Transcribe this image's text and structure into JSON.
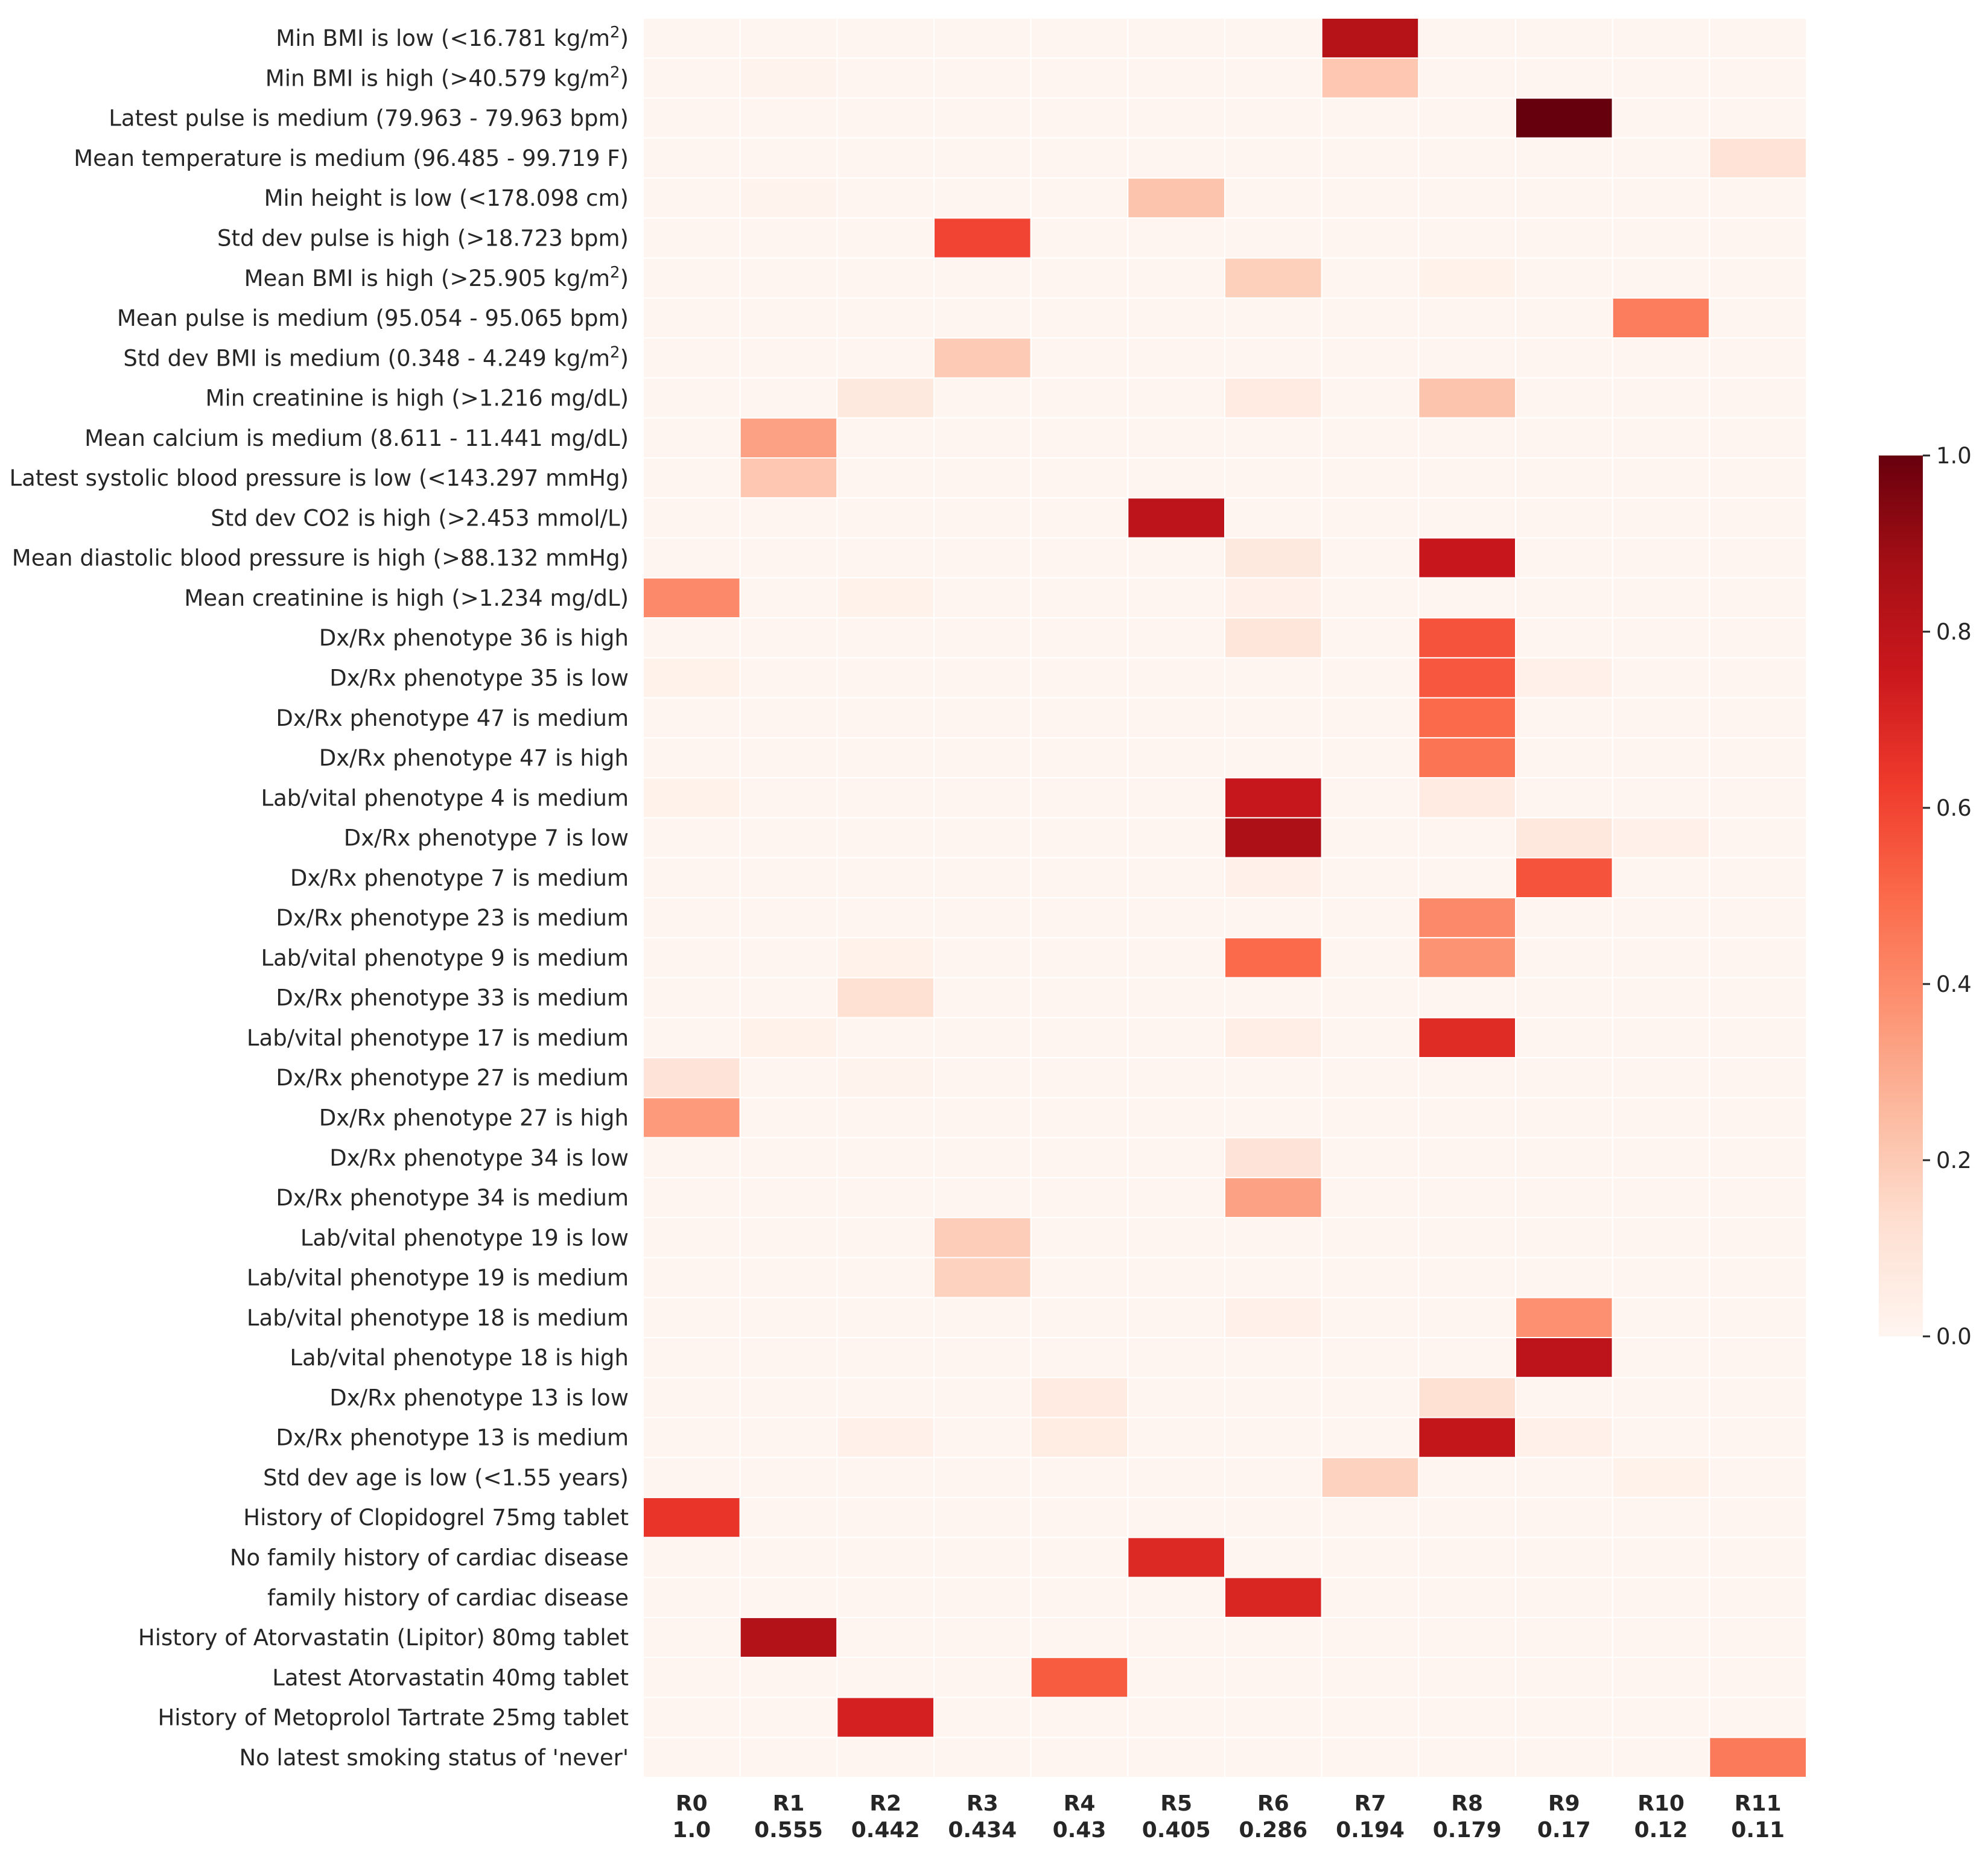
{
  "chart_data": {
    "type": "heatmap",
    "title": "",
    "xlabel": "",
    "ylabel": "",
    "columns": [
      {
        "name": "R0",
        "score": "1.0"
      },
      {
        "name": "R1",
        "score": "0.555"
      },
      {
        "name": "R2",
        "score": "0.442"
      },
      {
        "name": "R3",
        "score": "0.434"
      },
      {
        "name": "R4",
        "score": "0.43"
      },
      {
        "name": "R5",
        "score": "0.405"
      },
      {
        "name": "R6",
        "score": "0.286"
      },
      {
        "name": "R7",
        "score": "0.194"
      },
      {
        "name": "R8",
        "score": "0.179"
      },
      {
        "name": "R9",
        "score": "0.17"
      },
      {
        "name": "R10",
        "score": "0.12"
      },
      {
        "name": "R11",
        "score": "0.11"
      }
    ],
    "rows": [
      {
        "pre": "Min BMI is low (<16.781 kg/m",
        "sup": "2",
        "post": ")"
      },
      {
        "pre": "Min BMI is high (>40.579 kg/m",
        "sup": "2",
        "post": ")"
      },
      {
        "pre": "Latest pulse is medium (79.963 - 79.963 bpm)",
        "sup": "",
        "post": ""
      },
      {
        "pre": "Mean temperature is medium (96.485 - 99.719 F)",
        "sup": "",
        "post": ""
      },
      {
        "pre": "Min height is low (<178.098 cm)",
        "sup": "",
        "post": ""
      },
      {
        "pre": "Std dev pulse is high (>18.723 bpm)",
        "sup": "",
        "post": ""
      },
      {
        "pre": "Mean BMI is high (>25.905 kg/m",
        "sup": "2",
        "post": ")"
      },
      {
        "pre": "Mean pulse is medium (95.054 - 95.065 bpm)",
        "sup": "",
        "post": ""
      },
      {
        "pre": "Std dev BMI is medium (0.348 - 4.249 kg/m",
        "sup": "2",
        "post": ")"
      },
      {
        "pre": "Min creatinine is high (>1.216 mg/dL)",
        "sup": "",
        "post": ""
      },
      {
        "pre": "Mean calcium is medium (8.611 - 11.441 mg/dL)",
        "sup": "",
        "post": ""
      },
      {
        "pre": "Latest systolic blood pressure is low (<143.297 mmHg)",
        "sup": "",
        "post": ""
      },
      {
        "pre": "Std dev CO2 is high (>2.453 mmol/L)",
        "sup": "",
        "post": ""
      },
      {
        "pre": "Mean diastolic blood pressure is high (>88.132 mmHg)",
        "sup": "",
        "post": ""
      },
      {
        "pre": "Mean creatinine is high (>1.234 mg/dL)",
        "sup": "",
        "post": ""
      },
      {
        "pre": "Dx/Rx phenotype 36 is high",
        "sup": "",
        "post": ""
      },
      {
        "pre": "Dx/Rx phenotype 35 is low",
        "sup": "",
        "post": ""
      },
      {
        "pre": "Dx/Rx phenotype 47 is medium",
        "sup": "",
        "post": ""
      },
      {
        "pre": "Dx/Rx phenotype 47 is high",
        "sup": "",
        "post": ""
      },
      {
        "pre": "Lab/vital phenotype 4 is medium",
        "sup": "",
        "post": ""
      },
      {
        "pre": "Dx/Rx phenotype 7 is low",
        "sup": "",
        "post": ""
      },
      {
        "pre": "Dx/Rx phenotype 7 is medium",
        "sup": "",
        "post": ""
      },
      {
        "pre": "Dx/Rx phenotype 23 is medium",
        "sup": "",
        "post": ""
      },
      {
        "pre": "Lab/vital phenotype 9 is medium",
        "sup": "",
        "post": ""
      },
      {
        "pre": "Dx/Rx phenotype 33 is medium",
        "sup": "",
        "post": ""
      },
      {
        "pre": "Lab/vital phenotype 17 is medium",
        "sup": "",
        "post": ""
      },
      {
        "pre": "Dx/Rx phenotype 27 is medium",
        "sup": "",
        "post": ""
      },
      {
        "pre": "Dx/Rx phenotype 27 is high",
        "sup": "",
        "post": ""
      },
      {
        "pre": "Dx/Rx phenotype 34 is low",
        "sup": "",
        "post": ""
      },
      {
        "pre": "Dx/Rx phenotype 34 is medium",
        "sup": "",
        "post": ""
      },
      {
        "pre": "Lab/vital phenotype 19 is low",
        "sup": "",
        "post": ""
      },
      {
        "pre": "Lab/vital phenotype 19 is medium",
        "sup": "",
        "post": ""
      },
      {
        "pre": "Lab/vital phenotype 18 is medium",
        "sup": "",
        "post": ""
      },
      {
        "pre": "Lab/vital phenotype 18 is high",
        "sup": "",
        "post": ""
      },
      {
        "pre": "Dx/Rx phenotype 13 is low",
        "sup": "",
        "post": ""
      },
      {
        "pre": "Dx/Rx phenotype 13 is medium",
        "sup": "",
        "post": ""
      },
      {
        "pre": "Std dev age is low (<1.55 years)",
        "sup": "",
        "post": ""
      },
      {
        "pre": "History of Clopidogrel 75mg tablet",
        "sup": "",
        "post": ""
      },
      {
        "pre": "No family history of cardiac disease",
        "sup": "",
        "post": ""
      },
      {
        "pre": "family history of cardiac disease",
        "sup": "",
        "post": ""
      },
      {
        "pre": "History of Atorvastatin (Lipitor) 80mg tablet",
        "sup": "",
        "post": ""
      },
      {
        "pre": "Latest Atorvastatin 40mg tablet",
        "sup": "",
        "post": ""
      },
      {
        "pre": "History of Metoprolol Tartrate 25mg tablet",
        "sup": "",
        "post": ""
      },
      {
        "pre": "No latest smoking status of 'never'",
        "sup": "",
        "post": ""
      }
    ],
    "values": [
      [
        0.0,
        0.0,
        0.0,
        0.0,
        0.0,
        0.0,
        0.0,
        0.82,
        0.0,
        0.0,
        0.0,
        0.0
      ],
      [
        0.0,
        0.01,
        0.0,
        0.0,
        0.0,
        0.0,
        0.0,
        0.21,
        0.0,
        0.0,
        0.0,
        0.0
      ],
      [
        0.0,
        0.0,
        0.0,
        0.0,
        0.0,
        0.0,
        0.0,
        0.0,
        0.0,
        1.0,
        0.0,
        0.0
      ],
      [
        0.0,
        0.0,
        0.0,
        0.0,
        0.0,
        0.0,
        0.0,
        0.0,
        0.0,
        0.0,
        0.0,
        0.11
      ],
      [
        0.0,
        0.01,
        0.0,
        0.0,
        0.0,
        0.22,
        0.0,
        0.0,
        0.0,
        0.0,
        0.0,
        0.0
      ],
      [
        0.0,
        0.0,
        0.0,
        0.6,
        0.0,
        0.0,
        0.0,
        0.0,
        0.0,
        0.0,
        0.0,
        0.0
      ],
      [
        0.0,
        0.0,
        0.0,
        0.0,
        0.0,
        0.0,
        0.18,
        0.0,
        0.02,
        0.0,
        0.0,
        0.0
      ],
      [
        0.0,
        0.0,
        0.0,
        0.0,
        0.0,
        0.0,
        0.0,
        0.0,
        0.0,
        0.0,
        0.44,
        0.0
      ],
      [
        0.0,
        0.0,
        0.0,
        0.2,
        0.0,
        0.0,
        0.0,
        0.0,
        0.0,
        0.0,
        0.0,
        0.0
      ],
      [
        0.0,
        0.0,
        0.07,
        0.0,
        0.0,
        0.0,
        0.06,
        0.0,
        0.22,
        0.0,
        0.0,
        0.0
      ],
      [
        0.0,
        0.33,
        0.0,
        0.0,
        0.0,
        0.0,
        0.0,
        0.0,
        0.0,
        0.0,
        0.0,
        0.0
      ],
      [
        0.0,
        0.21,
        0.0,
        0.0,
        0.0,
        0.0,
        0.0,
        0.0,
        0.0,
        0.0,
        0.0,
        0.0
      ],
      [
        0.0,
        0.0,
        0.0,
        0.0,
        0.0,
        0.8,
        0.0,
        0.0,
        0.0,
        0.0,
        0.0,
        0.0
      ],
      [
        0.0,
        0.0,
        0.0,
        0.0,
        0.0,
        0.0,
        0.07,
        0.0,
        0.76,
        0.0,
        0.0,
        0.0
      ],
      [
        0.4,
        0.0,
        0.02,
        0.0,
        0.0,
        0.0,
        0.03,
        0.0,
        0.0,
        0.0,
        0.0,
        0.0
      ],
      [
        0.0,
        0.0,
        0.0,
        0.0,
        0.0,
        0.0,
        0.09,
        0.0,
        0.56,
        0.0,
        0.0,
        0.0
      ],
      [
        0.02,
        0.0,
        0.0,
        0.0,
        0.0,
        0.0,
        0.0,
        0.0,
        0.55,
        0.03,
        0.0,
        0.0
      ],
      [
        0.0,
        0.0,
        0.0,
        0.0,
        0.0,
        0.0,
        0.0,
        0.0,
        0.5,
        0.0,
        0.0,
        0.0
      ],
      [
        0.0,
        0.0,
        0.0,
        0.0,
        0.0,
        0.0,
        0.0,
        0.0,
        0.47,
        0.0,
        0.0,
        0.0
      ],
      [
        0.02,
        0.0,
        0.0,
        0.0,
        0.0,
        0.0,
        0.77,
        0.0,
        0.06,
        0.0,
        0.0,
        0.0
      ],
      [
        0.0,
        0.0,
        0.0,
        0.0,
        0.0,
        0.0,
        0.85,
        0.0,
        0.0,
        0.08,
        0.03,
        0.0
      ],
      [
        0.0,
        0.0,
        0.0,
        0.0,
        0.0,
        0.0,
        0.03,
        0.0,
        0.0,
        0.56,
        0.0,
        0.0
      ],
      [
        0.0,
        0.0,
        0.0,
        0.0,
        0.0,
        0.0,
        0.0,
        0.0,
        0.4,
        0.0,
        0.0,
        0.0
      ],
      [
        0.0,
        0.0,
        0.02,
        0.0,
        0.0,
        0.0,
        0.5,
        0.0,
        0.37,
        0.0,
        0.0,
        0.0
      ],
      [
        0.0,
        0.0,
        0.12,
        0.0,
        0.0,
        0.0,
        0.0,
        0.0,
        0.0,
        0.0,
        0.0,
        0.0
      ],
      [
        0.0,
        0.02,
        0.0,
        0.0,
        0.0,
        0.0,
        0.04,
        0.0,
        0.68,
        0.0,
        0.0,
        0.0
      ],
      [
        0.1,
        0.0,
        0.01,
        0.0,
        0.0,
        0.0,
        0.0,
        0.0,
        0.0,
        0.0,
        0.0,
        0.0
      ],
      [
        0.35,
        0.0,
        0.0,
        0.0,
        0.0,
        0.0,
        0.0,
        0.0,
        0.0,
        0.0,
        0.0,
        0.0
      ],
      [
        0.0,
        0.0,
        0.0,
        0.0,
        0.0,
        0.0,
        0.1,
        0.0,
        0.0,
        0.0,
        0.0,
        0.0
      ],
      [
        0.0,
        0.0,
        0.0,
        0.0,
        0.0,
        0.0,
        0.33,
        0.0,
        0.0,
        0.0,
        0.0,
        0.0
      ],
      [
        0.0,
        0.0,
        0.0,
        0.19,
        0.0,
        0.0,
        0.0,
        0.0,
        0.0,
        0.0,
        0.0,
        0.0
      ],
      [
        0.0,
        0.0,
        0.0,
        0.17,
        0.0,
        0.0,
        0.0,
        0.0,
        0.0,
        0.0,
        0.0,
        0.0
      ],
      [
        0.0,
        0.0,
        0.0,
        0.0,
        0.0,
        0.0,
        0.03,
        0.0,
        0.0,
        0.38,
        0.0,
        0.0
      ],
      [
        0.0,
        0.0,
        0.0,
        0.0,
        0.0,
        0.0,
        0.0,
        0.0,
        0.0,
        0.8,
        0.0,
        0.0
      ],
      [
        0.0,
        0.0,
        0.0,
        0.0,
        0.06,
        0.0,
        0.0,
        0.0,
        0.12,
        0.0,
        0.0,
        0.0
      ],
      [
        0.0,
        0.0,
        0.03,
        0.0,
        0.05,
        0.0,
        0.0,
        0.0,
        0.78,
        0.03,
        0.0,
        0.0
      ],
      [
        0.0,
        0.0,
        0.0,
        0.0,
        0.0,
        0.0,
        0.0,
        0.17,
        0.0,
        0.0,
        0.02,
        0.0
      ],
      [
        0.65,
        0.0,
        0.0,
        0.0,
        0.0,
        0.0,
        0.0,
        0.0,
        0.0,
        0.0,
        0.0,
        0.0
      ],
      [
        0.0,
        0.0,
        0.0,
        0.0,
        0.0,
        0.69,
        0.0,
        0.0,
        0.0,
        0.0,
        0.0,
        0.0
      ],
      [
        0.0,
        0.0,
        0.0,
        0.0,
        0.0,
        0.0,
        0.7,
        0.0,
        0.0,
        0.0,
        0.0,
        0.0
      ],
      [
        0.0,
        0.83,
        0.0,
        0.0,
        0.0,
        0.0,
        0.0,
        0.0,
        0.0,
        0.0,
        0.0,
        0.0
      ],
      [
        0.0,
        0.0,
        0.0,
        0.0,
        0.54,
        0.0,
        0.0,
        0.0,
        0.0,
        0.0,
        0.0,
        0.0
      ],
      [
        0.0,
        0.0,
        0.72,
        0.0,
        0.0,
        0.0,
        0.0,
        0.0,
        0.0,
        0.0,
        0.0,
        0.0
      ],
      [
        0.0,
        0.0,
        0.0,
        0.0,
        0.0,
        0.0,
        0.0,
        0.0,
        0.0,
        0.0,
        0.0,
        0.45
      ]
    ],
    "colorbar": {
      "range": [
        0.0,
        1.0
      ],
      "ticks": [
        "0.0",
        "0.2",
        "0.4",
        "0.6",
        "0.8",
        "1.0"
      ],
      "colormap": "Reds",
      "stops": [
        "#fff5f0",
        "#fee0d2",
        "#fcbba1",
        "#fc9272",
        "#fb6a4a",
        "#ef3b2c",
        "#cb181d",
        "#a50f15",
        "#67000d"
      ]
    },
    "grid": true
  }
}
